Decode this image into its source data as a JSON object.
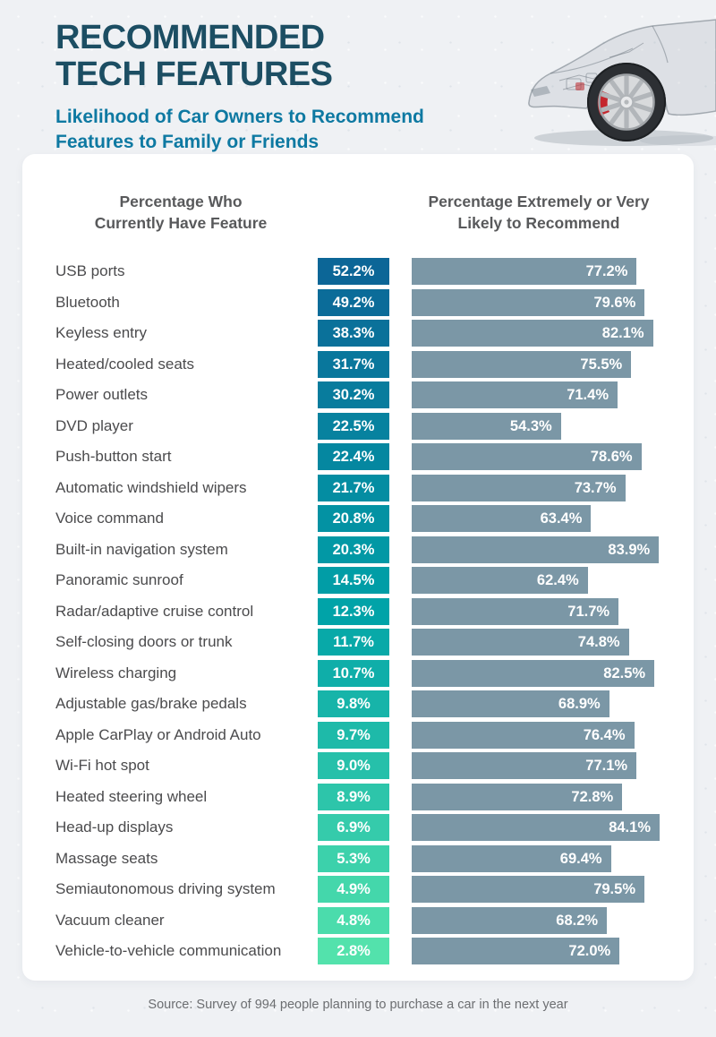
{
  "header": {
    "title_line1": "RECOMMENDED",
    "title_line2": "TECH FEATURES",
    "subtitle_line1": "Likelihood of Car Owners to Recommend",
    "subtitle_line2": "Features to Family or Friends"
  },
  "columns": {
    "have_line1": "Percentage Who",
    "have_line2": "Currently Have Feature",
    "recommend_line1": "Percentage Extremely or Very",
    "recommend_line2": "Likely to Recommend"
  },
  "chart_data": {
    "type": "bar",
    "orientation": "horizontal",
    "title": "Recommended Tech Features",
    "subtitle": "Likelihood of Car Owners to Recommend Features to Family or Friends",
    "value_suffix": "%",
    "value_range": [
      0,
      100
    ],
    "grid": false,
    "legend_position": "column-headers",
    "categories": [
      "USB ports",
      "Bluetooth",
      "Keyless entry",
      "Heated/cooled seats",
      "Power outlets",
      "DVD player",
      "Push-button start",
      "Automatic windshield wipers",
      "Voice command",
      "Built-in navigation system",
      "Panoramic sunroof",
      "Radar/adaptive cruise control",
      "Self-closing doors or trunk",
      "Wireless charging",
      "Adjustable gas/brake pedals",
      "Apple CarPlay or Android Auto",
      "Wi-Fi hot spot",
      "Heated steering wheel",
      "Head-up displays",
      "Massage seats",
      "Semiautonomous driving system",
      "Vacuum cleaner",
      "Vehicle-to-vehicle communication"
    ],
    "series": [
      {
        "name": "Percentage Who Currently Have Feature",
        "values": [
          52.2,
          49.2,
          38.3,
          31.7,
          30.2,
          22.5,
          22.4,
          21.7,
          20.8,
          20.3,
          14.5,
          12.3,
          11.7,
          10.7,
          9.8,
          9.7,
          9.0,
          8.9,
          6.9,
          5.3,
          4.9,
          4.8,
          2.8
        ],
        "labels": [
          "52.2%",
          "49.2%",
          "38.3%",
          "31.7%",
          "30.2%",
          "22.5%",
          "22.4%",
          "21.7%",
          "20.8%",
          "20.3%",
          "14.5%",
          "12.3%",
          "11.7%",
          "10.7%",
          "9.8%",
          "9.7%",
          "9.0%",
          "8.9%",
          "6.9%",
          "5.3%",
          "4.9%",
          "4.8%",
          "2.8%"
        ]
      },
      {
        "name": "Percentage Extremely or Very Likely to Recommend",
        "values": [
          77.2,
          79.6,
          82.1,
          75.5,
          71.4,
          54.3,
          78.6,
          73.7,
          63.4,
          83.9,
          62.4,
          71.7,
          74.8,
          82.5,
          68.9,
          76.4,
          77.1,
          72.8,
          84.1,
          69.4,
          79.5,
          68.2,
          72.0
        ],
        "labels": [
          "77.2%",
          "79.6%",
          "82.1%",
          "75.5%",
          "71.4%",
          "54.3%",
          "78.6%",
          "73.7%",
          "63.4%",
          "83.9%",
          "62.4%",
          "71.7%",
          "74.8%",
          "82.5%",
          "68.9%",
          "76.4%",
          "77.1%",
          "72.8%",
          "84.1%",
          "69.4%",
          "79.5%",
          "68.2%",
          "72.0%"
        ]
      }
    ]
  },
  "colors": {
    "badge_gradient_top": "#0c6697",
    "badge_gradient_mid": "#00a3a8",
    "badge_gradient_bottom": "#53e2ac",
    "recommend_bar": "#7b97a6",
    "title_text": "#1c4e63",
    "subtitle_text": "#0e79a2",
    "column_header_text": "#58595b",
    "feature_label_text": "#4b4b4d",
    "value_text": "#ffffff",
    "card_background": "#ffffff",
    "page_background": "#eff1f4"
  },
  "footer": {
    "source": "Source: Survey of 994 people planning to purchase a car in the next year"
  }
}
